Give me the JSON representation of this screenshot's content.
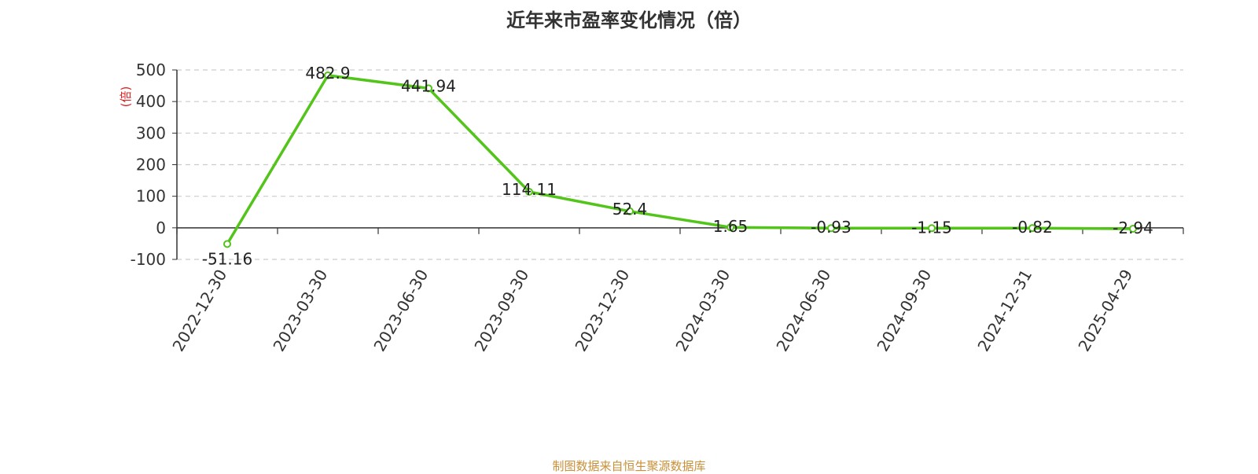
{
  "page": {
    "title": "近年来市盈率变化情况（倍）",
    "source": "制图数据来自恒生聚源数据库"
  },
  "chart_data": {
    "type": "line",
    "title": "近年来市盈率变化情况（倍）",
    "xlabel": "",
    "ylabel": "(倍)",
    "x": [
      "2022-12-30",
      "2023-03-30",
      "2023-06-30",
      "2023-09-30",
      "2023-12-30",
      "2024-03-30",
      "2024-06-30",
      "2024-09-30",
      "2024-12-31",
      "2025-04-29"
    ],
    "series": [
      {
        "values": [
          -51.16,
          482.9,
          441.94,
          114.11,
          52.4,
          1.65,
          -0.93,
          -1.15,
          -0.82,
          -2.94
        ],
        "labels": [
          "-51.16",
          "482.9",
          "441.94",
          "114.11",
          "52.4",
          "1.65",
          "-0.93",
          "-1.15",
          "-0.82",
          "-2.94"
        ]
      }
    ],
    "ylim": [
      -100,
      500
    ],
    "yticks": [
      500,
      400,
      300,
      200,
      100,
      0,
      -100
    ],
    "grid": true,
    "line_color": "#52c41a"
  }
}
